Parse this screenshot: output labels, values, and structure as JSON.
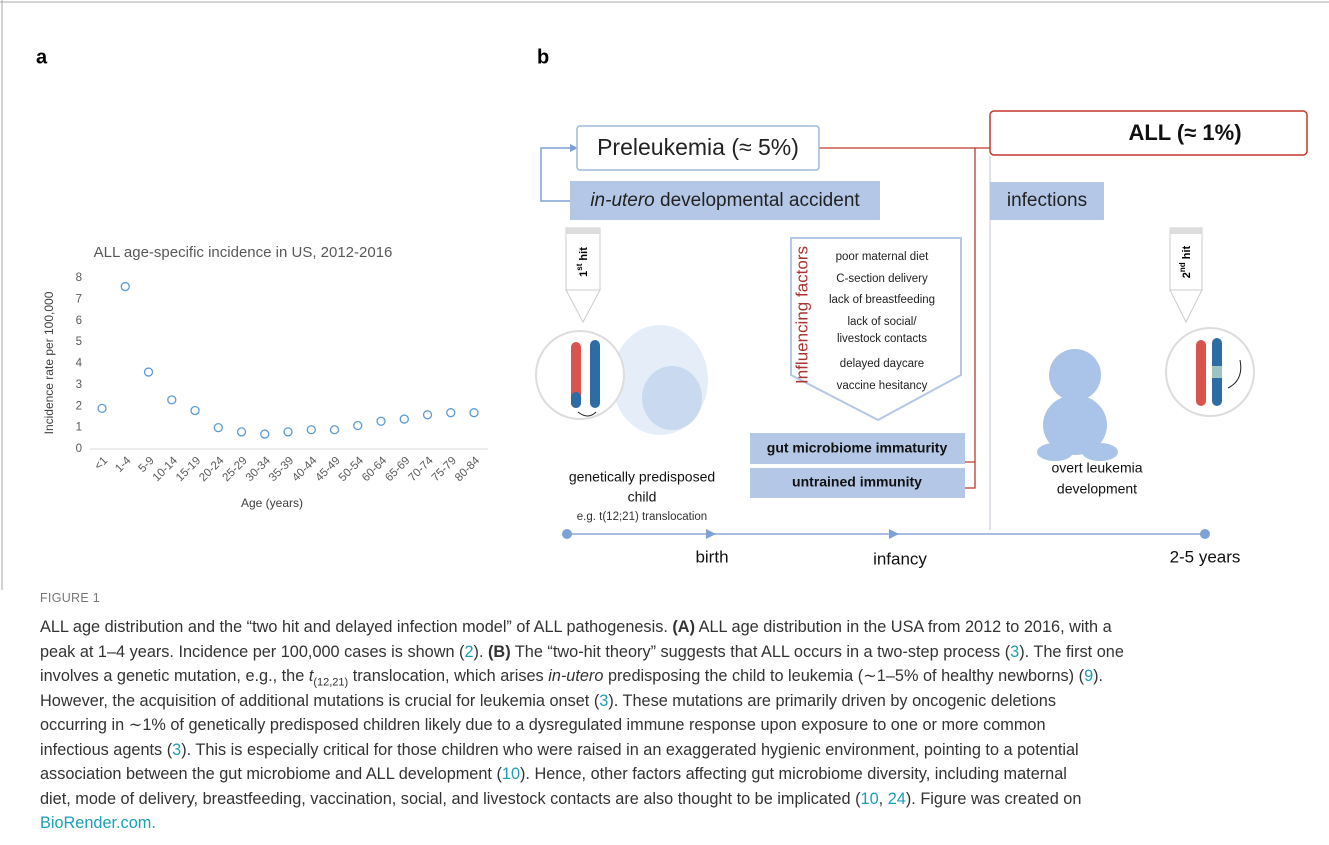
{
  "panel_labels": [
    "a",
    "b"
  ],
  "chart_data": {
    "type": "scatter",
    "title": "ALL age-specific incidence in US, 2012-2016",
    "x_label": "Age (years)",
    "y_label": "Incidence rate per 100,000",
    "categories": [
      "<1",
      "1-4",
      "5-9",
      "10-14",
      "15-19",
      "20-24",
      "25-29",
      "30-34",
      "35-39",
      "40-44",
      "45-49",
      "50-54",
      "60-64",
      "65-69",
      "70-74",
      "75-79",
      "80-84"
    ],
    "values": [
      1.9,
      7.6,
      3.6,
      2.3,
      1.8,
      1.0,
      0.8,
      0.7,
      0.8,
      0.9,
      0.9,
      1.1,
      1.3,
      1.4,
      1.6,
      1.7,
      1.7
    ],
    "color": "#5b9bd5",
    "ylim": [
      0,
      8
    ],
    "yticks": [
      0,
      1,
      2,
      3,
      4,
      5,
      6,
      7,
      8
    ],
    "grid": false
  },
  "diagram": {
    "preleukemia": "Preleukemia (≈ 5%)",
    "accident": {
      "italic": "in-utero",
      "rest": " developmental accident"
    },
    "all": "ALL (≈ 1%)",
    "infections": "infections",
    "first_hit": [
      "1",
      "st",
      " hit"
    ],
    "second_hit": [
      "2",
      "nd",
      " hit"
    ],
    "influencing_title": "Influencing factors",
    "factors": [
      "poor maternal diet",
      "C-section delivery",
      "lack of breastfeeding",
      "lack of social/",
      "livestock contacts",
      "delayed daycare",
      "vaccine hesitancy"
    ],
    "gut": "gut microbiome immaturity",
    "immunity": "untrained immunity",
    "child": [
      "genetically predisposed",
      "child"
    ],
    "example": "e.g. t(12;21) translocation",
    "overt": [
      "overt leukemia",
      "development"
    ],
    "timeline": [
      "birth",
      "infancy",
      "2-5 years"
    ]
  },
  "caption": {
    "label": "FIGURE 1",
    "lines": [
      [
        "ALL age distribution and the “two hit and delayed infection model” of ALL pathogenesis. ",
        {
          "text": "(A)",
          "style": "bold"
        },
        " ALL age distribution in the USA from 2012 to 2016, with a"
      ],
      [
        "peak at 1–4 years. Incidence per 100,000 cases is shown (",
        {
          "text": "2",
          "style": "link"
        },
        "). ",
        {
          "text": "(B)",
          "style": "bold"
        },
        " The “two-hit theory” suggests that ALL occurs in a two-step process (",
        {
          "text": "3",
          "style": "link"
        },
        "). The first one"
      ],
      [
        "involves a genetic mutation, e.g., the ",
        {
          "text": "t",
          "style": "italic"
        },
        {
          "text": "(12,21)",
          "style": "sub"
        },
        " translocation, which arises ",
        {
          "text": "in-utero",
          "style": "italic"
        },
        " predisposing the child to leukemia (∼1–5% of healthy newborns) (",
        {
          "text": "9",
          "style": "link"
        },
        ")."
      ],
      [
        "However, the acquisition of additional mutations is crucial for leukemia onset (",
        {
          "text": "3",
          "style": "link"
        },
        "). These mutations are primarily driven by oncogenic deletions"
      ],
      [
        "occurring in ∼1% of genetically predisposed children likely due to a dysregulated immune response upon exposure to one or more common"
      ],
      [
        "infectious agents (",
        {
          "text": "3",
          "style": "link"
        },
        "). This is especially critical for those children who were raised in an exaggerated hygienic environment, pointing to a potential"
      ],
      [
        "association between the gut microbiome and ALL development (",
        {
          "text": "10",
          "style": "link"
        },
        "). Hence, other factors affecting gut microbiome diversity, including maternal"
      ],
      [
        "diet, mode of delivery, breastfeeding, vaccination, social, and livestock contacts are also thought to be implicated (",
        {
          "text": "10",
          "style": "link"
        },
        ", ",
        {
          "text": "24",
          "style": "link"
        },
        "). Figure was created on"
      ],
      [
        {
          "text": "BioRender.com.",
          "style": "link"
        }
      ]
    ]
  }
}
